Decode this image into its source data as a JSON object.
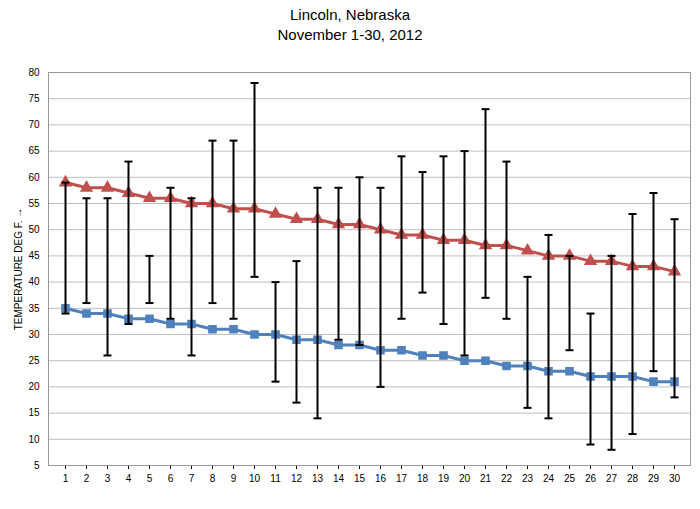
{
  "chart_data": {
    "type": "line",
    "title": "Lincoln, Nebraska",
    "subtitle": "November 1-30, 2012",
    "y_label": "TEMPERATURE DEG F.",
    "categories": [
      "1",
      "2",
      "3",
      "4",
      "5",
      "6",
      "7",
      "8",
      "9",
      "10",
      "11",
      "12",
      "13",
      "14",
      "15",
      "16",
      "17",
      "18",
      "19",
      "20",
      "21",
      "22",
      "23",
      "24",
      "25",
      "26",
      "27",
      "28",
      "29",
      "30"
    ],
    "series": [
      {
        "color": "#c0504d",
        "marker": "triangle",
        "values": [
          59,
          58,
          58,
          57,
          56,
          56,
          55,
          55,
          54,
          54,
          53,
          52,
          52,
          51,
          51,
          50,
          49,
          49,
          48,
          48,
          47,
          47,
          46,
          45,
          45,
          44,
          44,
          43,
          43,
          42
        ]
      },
      {
        "color": "#4f81bd",
        "marker": "square",
        "values": [
          35,
          34,
          34,
          33,
          33,
          32,
          32,
          31,
          31,
          30,
          30,
          29,
          29,
          28,
          28,
          27,
          27,
          26,
          26,
          25,
          25,
          24,
          24,
          23,
          23,
          22,
          22,
          22,
          21,
          21
        ]
      }
    ],
    "error_bars": {
      "color": "#000000",
      "low": [
        34,
        36,
        26,
        32,
        36,
        33,
        26,
        36,
        33,
        41,
        21,
        17,
        14,
        29,
        28,
        20,
        33,
        38,
        32,
        26,
        37,
        33,
        16,
        14,
        27,
        9,
        8,
        11,
        23,
        18
      ],
      "high": [
        59,
        56,
        56,
        63,
        45,
        58,
        56,
        67,
        67,
        78,
        40,
        44,
        58,
        58,
        60,
        58,
        64,
        61,
        64,
        65,
        73,
        63,
        41,
        49,
        45,
        34,
        45,
        53,
        57,
        52
      ]
    },
    "ylim": [
      5,
      80
    ],
    "yticks": [
      5,
      10,
      15,
      20,
      25,
      30,
      35,
      40,
      45,
      50,
      55,
      60,
      65,
      70,
      75,
      80
    ],
    "grid": true
  }
}
